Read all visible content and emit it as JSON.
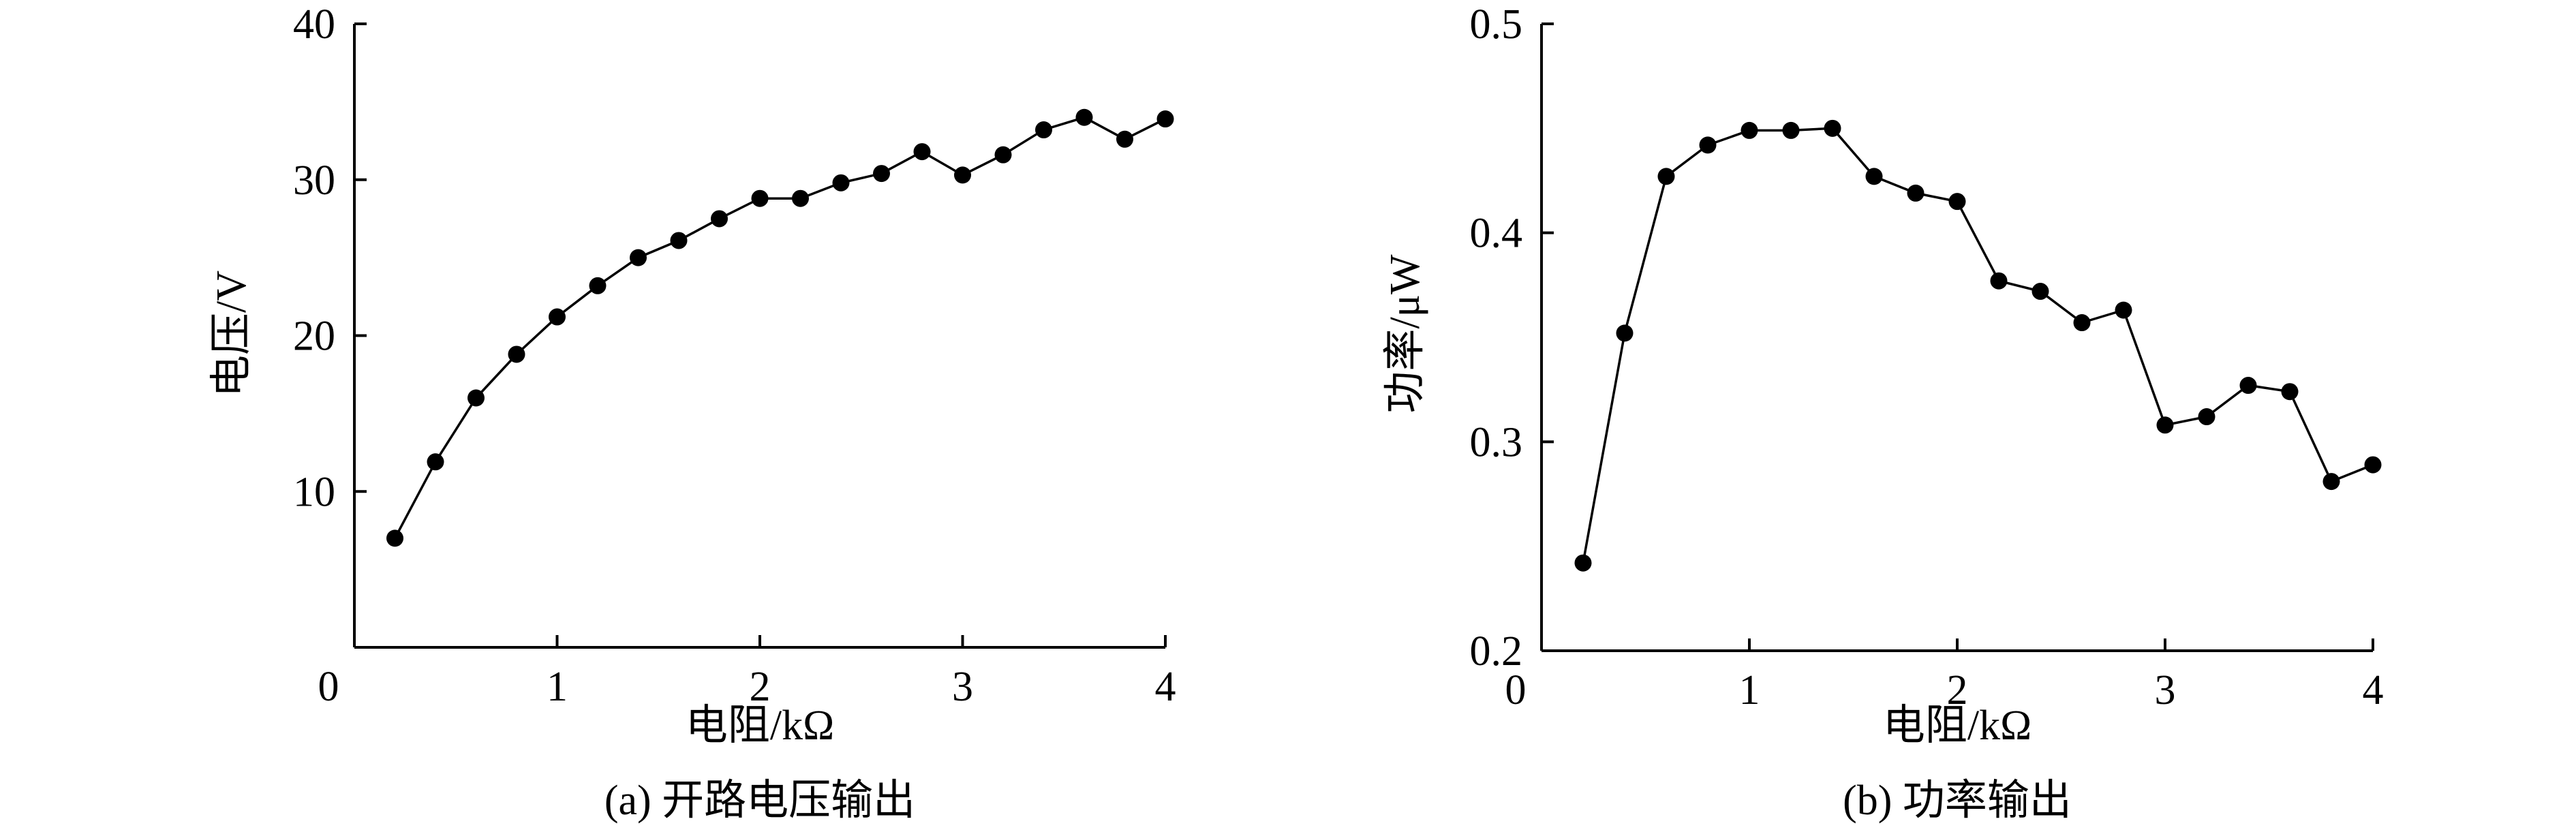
{
  "chart_data": [
    {
      "type": "line",
      "caption": "(a) 开路电压输出",
      "xlabel": "电阻/kΩ",
      "ylabel": "电压/V",
      "xlim": [
        0,
        4
      ],
      "ylim": [
        0,
        40
      ],
      "xticks": [
        0,
        1,
        2,
        3,
        4
      ],
      "xtick_labels": [
        "0",
        "1",
        "2",
        "3",
        "4"
      ],
      "yticks": [
        10,
        20,
        30,
        40
      ],
      "ytick_labels": [
        "10",
        "20",
        "30",
        "40"
      ],
      "grid": false,
      "series": [
        {
          "marker": "filled-circle",
          "x": [
            0.2,
            0.4,
            0.6,
            0.8,
            1.0,
            1.2,
            1.4,
            1.6,
            1.8,
            2.0,
            2.2,
            2.4,
            2.6,
            2.8,
            3.0,
            3.2,
            3.4,
            3.6,
            3.8,
            4.0
          ],
          "y": [
            7.0,
            11.9,
            16.0,
            18.8,
            21.2,
            23.2,
            25.0,
            26.1,
            27.5,
            28.8,
            28.8,
            29.8,
            30.4,
            31.8,
            30.3,
            31.6,
            33.2,
            34.0,
            32.6,
            33.9
          ]
        }
      ]
    },
    {
      "type": "line",
      "caption": "(b) 功率输出",
      "xlabel": "电阻/kΩ",
      "ylabel": "功率/μW",
      "xlim": [
        0,
        4
      ],
      "ylim": [
        0.2,
        0.5
      ],
      "xticks": [
        0,
        1,
        2,
        3,
        4
      ],
      "xtick_labels": [
        "0",
        "1",
        "2",
        "3",
        "4"
      ],
      "yticks": [
        0.2,
        0.3,
        0.4,
        0.5
      ],
      "ytick_labels": [
        "0.2",
        "0.3",
        "0.4",
        "0.5"
      ],
      "grid": false,
      "series": [
        {
          "marker": "filled-circle",
          "x": [
            0.2,
            0.4,
            0.6,
            0.8,
            1.0,
            1.2,
            1.4,
            1.6,
            1.8,
            2.0,
            2.2,
            2.4,
            2.6,
            2.8,
            3.0,
            3.2,
            3.4,
            3.6,
            3.8,
            4.0
          ],
          "y": [
            0.242,
            0.352,
            0.427,
            0.442,
            0.449,
            0.449,
            0.45,
            0.427,
            0.419,
            0.415,
            0.377,
            0.372,
            0.357,
            0.363,
            0.308,
            0.312,
            0.327,
            0.324,
            0.281,
            0.289
          ]
        }
      ]
    }
  ]
}
